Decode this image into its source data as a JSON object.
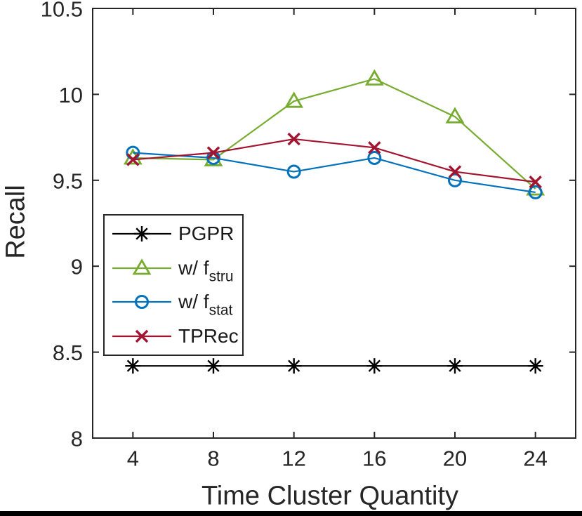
{
  "figure": {
    "background": "#ffffff",
    "axis_color": "#262626",
    "text_color": "#262626",
    "bottom_rule_color": "#000000"
  },
  "chart_data": {
    "type": "line",
    "title": "",
    "xlabel": "Time Cluster Quantity",
    "ylabel": "Recall",
    "x": [
      4,
      8,
      12,
      16,
      20,
      24
    ],
    "xlim": [
      2,
      26
    ],
    "ylim": [
      8,
      10.5
    ],
    "xticks": [
      4,
      8,
      12,
      16,
      20,
      24
    ],
    "xtick_labels": [
      "4",
      "8",
      "12",
      "16",
      "20",
      "24"
    ],
    "yticks": [
      8,
      8.5,
      9,
      9.5,
      10,
      10.5
    ],
    "ytick_labels": [
      "8",
      "8.5",
      "9",
      "9.5",
      "10",
      "10.5"
    ],
    "grid": false,
    "legend_position": "inside-lower-left",
    "series": [
      {
        "name": "PGPR",
        "marker": "asterisk",
        "color": "#000000",
        "values": [
          8.42,
          8.42,
          8.42,
          8.42,
          8.42,
          8.42
        ]
      },
      {
        "name": "w/ f_stru",
        "marker": "triangle-up",
        "color": "#77AC30",
        "values": [
          9.63,
          9.62,
          9.96,
          10.09,
          9.87,
          9.45
        ]
      },
      {
        "name": "w/ f_stat",
        "marker": "circle",
        "color": "#0072BD",
        "values": [
          9.66,
          9.63,
          9.55,
          9.63,
          9.5,
          9.43
        ]
      },
      {
        "name": "TPRec",
        "marker": "x",
        "color": "#A2142F",
        "values": [
          9.62,
          9.66,
          9.74,
          9.69,
          9.55,
          9.49
        ]
      }
    ]
  },
  "legend": {
    "items": [
      {
        "label": "PGPR",
        "sub": ""
      },
      {
        "label": "w/ f",
        "sub": "stru"
      },
      {
        "label": "w/ f",
        "sub": "stat"
      },
      {
        "label": "TPRec",
        "sub": ""
      }
    ]
  }
}
